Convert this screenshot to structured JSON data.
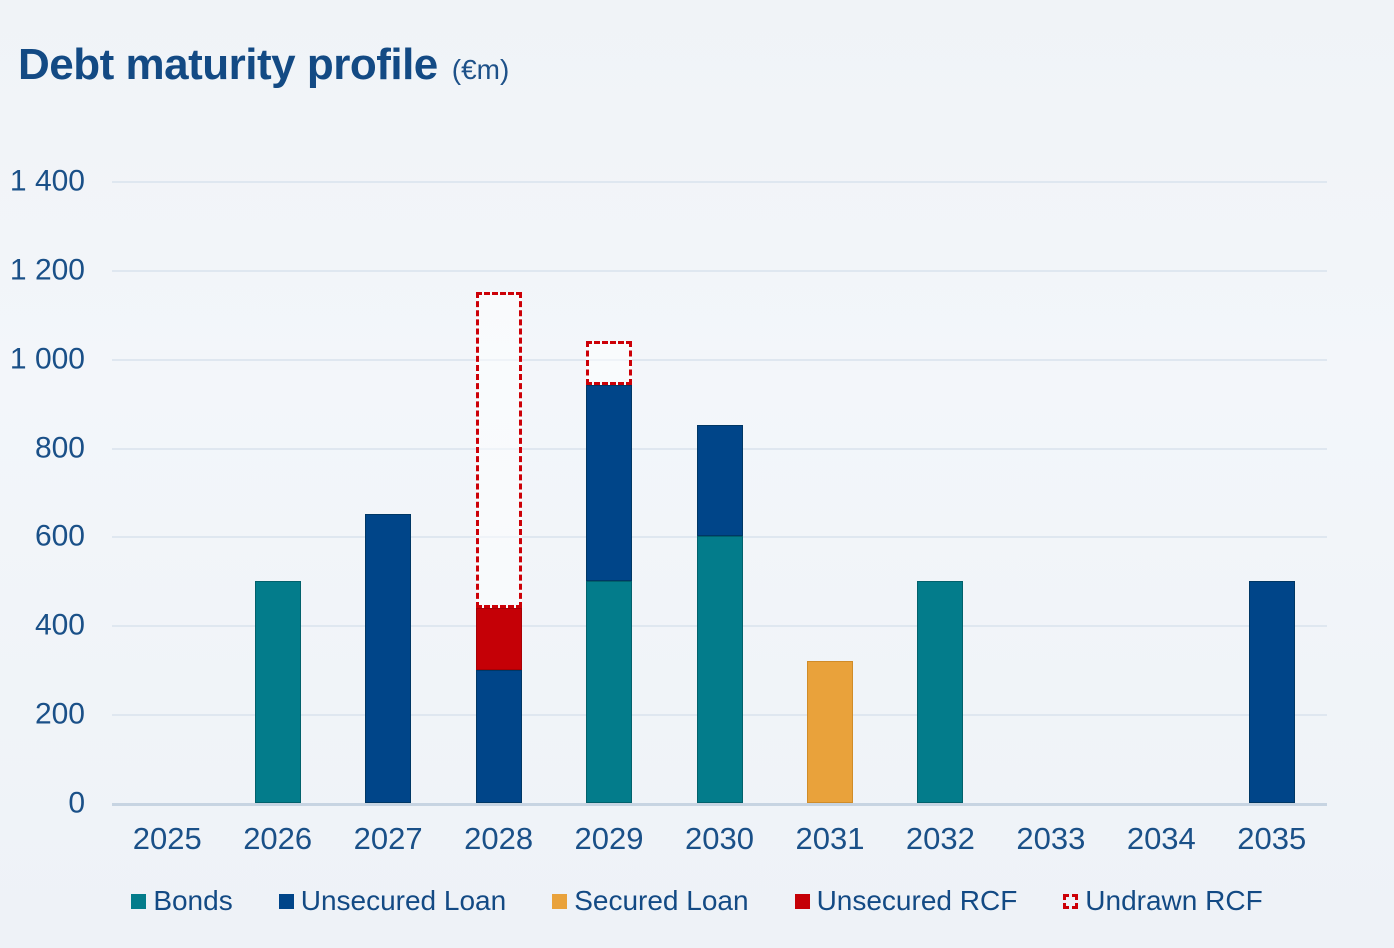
{
  "title": {
    "text": "Debt maturity profile",
    "unit": "(€m)"
  },
  "colors": {
    "title_text": "#134a84",
    "axis_text": "#1a5088",
    "gridline": "#dfe7f0",
    "axis_line": "#c7d4e2",
    "background": "#f1f4f8"
  },
  "chart_data": {
    "type": "bar",
    "stacked": true,
    "title": "Debt maturity profile",
    "unit": "€m",
    "xlabel": "",
    "ylabel": "",
    "grid": true,
    "legend_position": "bottom",
    "ylim": [
      0,
      1400
    ],
    "yticks": [
      {
        "value": 0,
        "label": "0"
      },
      {
        "value": 200,
        "label": "200"
      },
      {
        "value": 400,
        "label": "400"
      },
      {
        "value": 600,
        "label": "600"
      },
      {
        "value": 800,
        "label": "800"
      },
      {
        "value": 1000,
        "label": "1 000"
      },
      {
        "value": 1200,
        "label": "1 200"
      },
      {
        "value": 1400,
        "label": "1 400"
      }
    ],
    "categories": [
      "2025",
      "2026",
      "2027",
      "2028",
      "2029",
      "2030",
      "2031",
      "2032",
      "2033",
      "2034",
      "2035"
    ],
    "series": [
      {
        "name": "Bonds",
        "color": "#037c8b",
        "border": "#02616c",
        "style": "solid",
        "values": [
          0,
          500,
          0,
          0,
          500,
          600,
          0,
          500,
          0,
          0,
          0
        ]
      },
      {
        "name": "Unsecured Loan",
        "color": "#004589",
        "border": "#003765",
        "style": "solid",
        "values": [
          0,
          0,
          650,
          300,
          440,
          250,
          0,
          0,
          0,
          0,
          500
        ]
      },
      {
        "name": "Secured Loan",
        "color": "#e9a23b",
        "border": "#d08c29",
        "style": "solid",
        "values": [
          0,
          0,
          0,
          0,
          0,
          0,
          320,
          0,
          0,
          0,
          0
        ]
      },
      {
        "name": "Unsecured RCF",
        "color": "#c50006",
        "border": "#a80005",
        "style": "solid",
        "values": [
          0,
          0,
          0,
          140,
          0,
          0,
          0,
          0,
          0,
          0,
          0
        ]
      },
      {
        "name": "Undrawn RCF",
        "color": "#cc0007",
        "border": "#cc0007",
        "style": "dashed-outline",
        "values": [
          0,
          0,
          0,
          710,
          100,
          0,
          0,
          0,
          0,
          0,
          0
        ]
      }
    ]
  }
}
